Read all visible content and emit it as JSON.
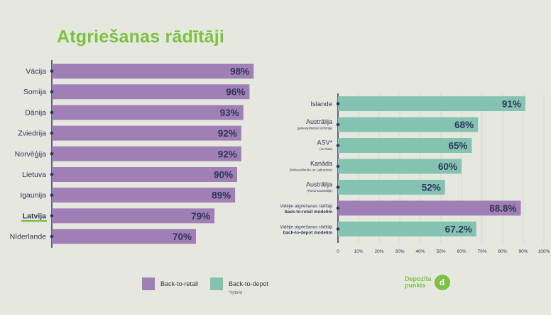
{
  "title": "Atgriešanas rādītāji",
  "colors": {
    "retail": "#9f7fb5",
    "depot": "#84c3b2",
    "accent": "#7cc242",
    "text": "#2f3659"
  },
  "chart_data": [
    {
      "type": "bar",
      "orientation": "horizontal",
      "categories": [
        "Vācija",
        "Somija",
        "Dānija",
        "Zviedrija",
        "Norvēģija",
        "Lietuva",
        "Igaunija",
        "Latvija",
        "Nīderlande"
      ],
      "values": [
        98,
        96,
        93,
        92,
        92,
        90,
        89,
        79,
        70
      ],
      "value_labels": [
        "98%",
        "96%",
        "93%",
        "92%",
        "92%",
        "90%",
        "89%",
        "79%",
        "70%"
      ],
      "highlight": "Latvija",
      "series_color": "#9f7fb5"
    },
    {
      "type": "bar",
      "orientation": "horizontal",
      "categories": [
        {
          "name": "Islande",
          "sub": ""
        },
        {
          "name": "Austrālija",
          "sub": "(galvaspilsētas teritorija)"
        },
        {
          "name": "ASV*",
          "sub": "(10 štati)"
        },
        {
          "name": "Kanāda",
          "sub": "(Ņūfaundlenda un Labradora)"
        },
        {
          "name": "Austrālija",
          "sub": "(Rietumaustrālija)"
        },
        {
          "name": "Vidējie atgriešanas rādītāji",
          "sub": "back-to-retail modelim"
        },
        {
          "name": "Vidējie atgriešanas rādītāji",
          "sub": "back-to-depot modelim"
        }
      ],
      "values": [
        91,
        68,
        65,
        60,
        52,
        88.8,
        67.2
      ],
      "value_labels": [
        "91%",
        "68%",
        "65%",
        "60%",
        "52%",
        "88.8%",
        "67.2%"
      ],
      "bar_colors": [
        "#84c3b2",
        "#84c3b2",
        "#84c3b2",
        "#84c3b2",
        "#84c3b2",
        "#9f7fb5",
        "#84c3b2"
      ],
      "xlim": [
        0,
        100
      ],
      "ticks": [
        "0",
        "10%",
        "20%",
        "30%",
        "40%",
        "50%",
        "60%",
        "70%",
        "80%",
        "90%",
        "100%"
      ],
      "grid": true
    }
  ],
  "legend": {
    "retail_label": "Back-to-retail",
    "depot_label": "Back-to-depot",
    "depot_note": "*hybrid"
  },
  "logo": {
    "line1": "Depozīta",
    "line2": "punkts",
    "mark": "d"
  }
}
